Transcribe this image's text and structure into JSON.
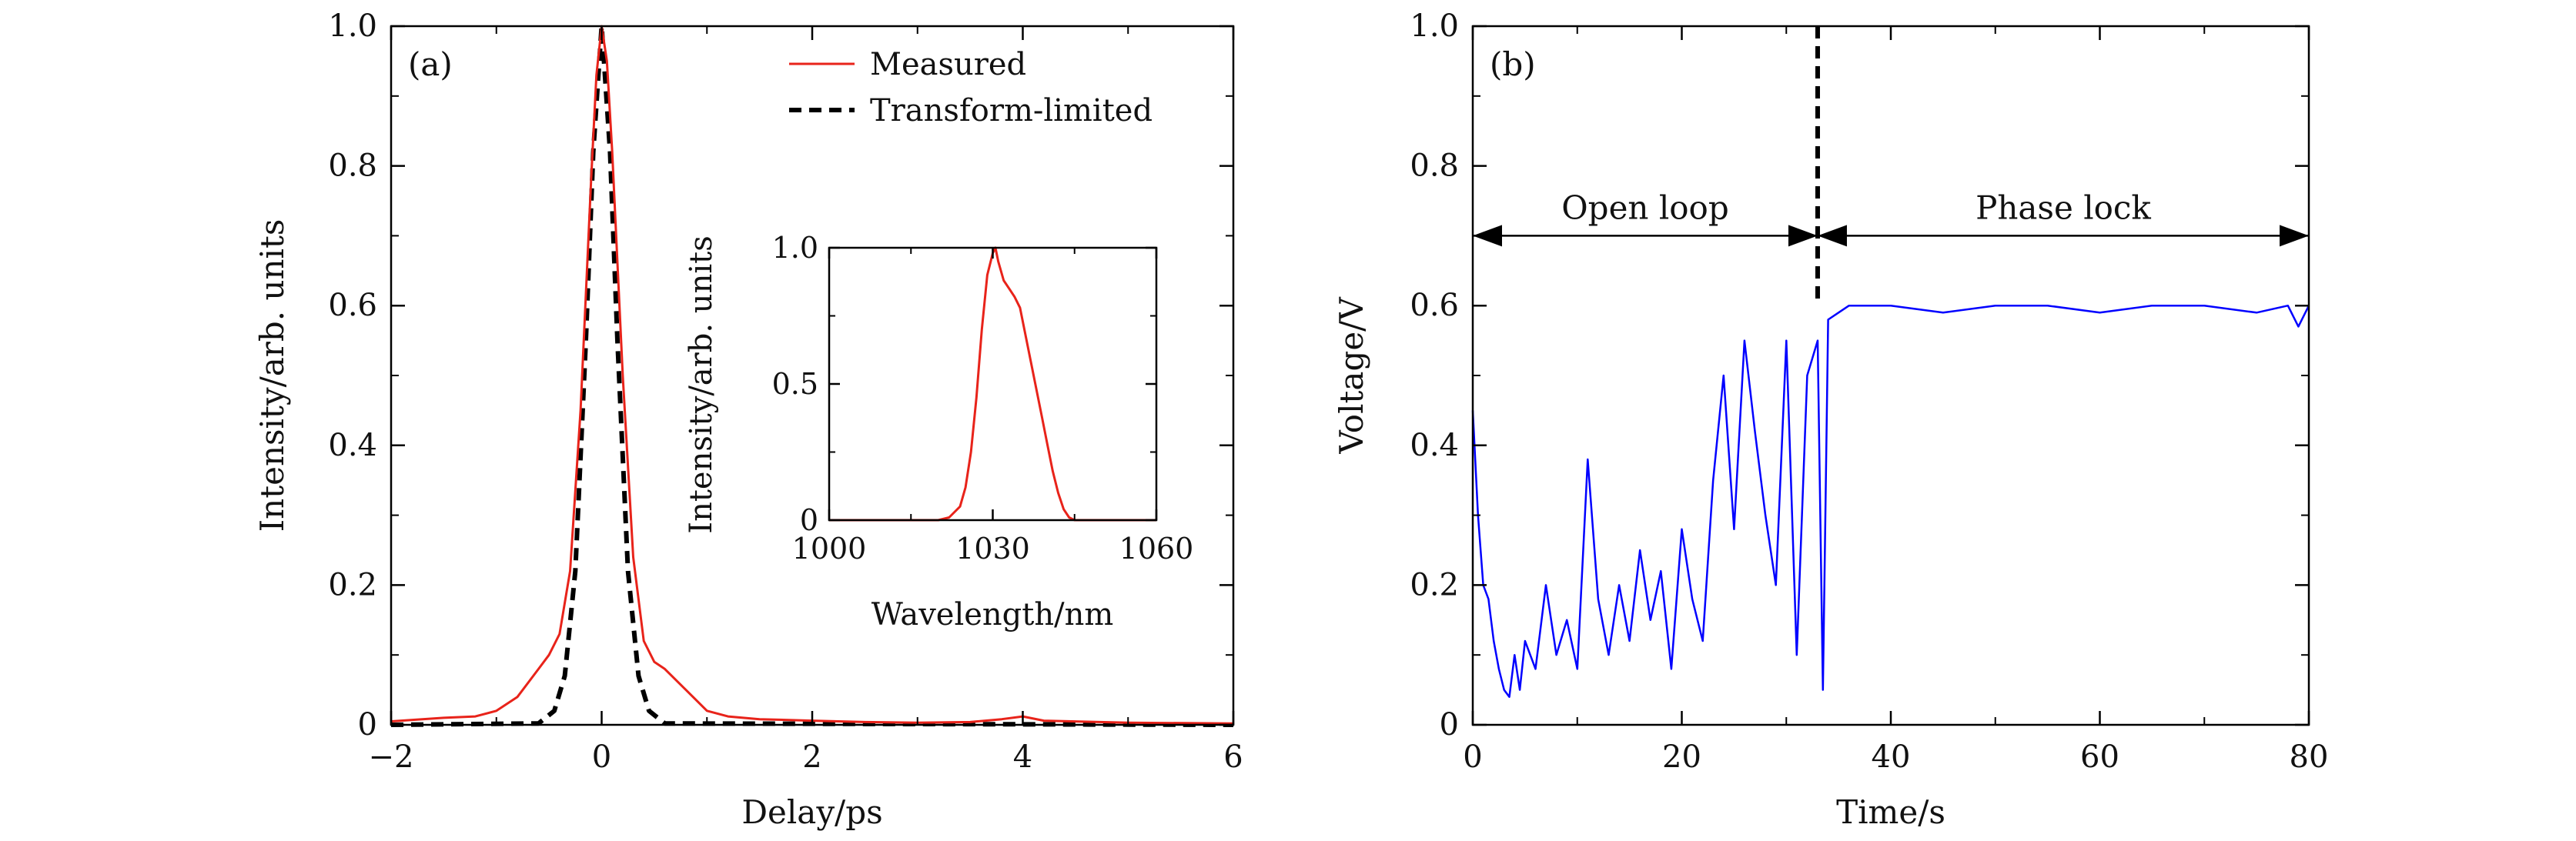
{
  "chart_data": [
    {
      "panel": "(a)",
      "type": "line",
      "xlabel": "Delay/ps",
      "ylabel": "Intensity/arb. units",
      "xlim": [
        -2,
        6
      ],
      "ylim": [
        0,
        1.0
      ],
      "xticks": [
        -2,
        0,
        2,
        4,
        6
      ],
      "xtick_labels": [
        "−2",
        "0",
        "2",
        "4",
        "6"
      ],
      "yticks": [
        0,
        0.2,
        0.4,
        0.6,
        0.8,
        1.0
      ],
      "ytick_labels": [
        "0",
        "0.2",
        "0.4",
        "0.6",
        "0.8",
        "1.0"
      ],
      "legend_position": "top-right",
      "series": [
        {
          "name": "Measured",
          "color": "#e8231a",
          "style": "solid",
          "x": [
            -2.0,
            -1.5,
            -1.2,
            -1.0,
            -0.8,
            -0.6,
            -0.5,
            -0.4,
            -0.3,
            -0.2,
            -0.1,
            -0.05,
            0.0,
            0.05,
            0.1,
            0.2,
            0.3,
            0.4,
            0.5,
            0.6,
            0.8,
            1.0,
            1.2,
            1.5,
            2.0,
            2.5,
            3.0,
            3.5,
            3.8,
            4.0,
            4.2,
            5.0,
            6.0
          ],
          "y": [
            0.005,
            0.01,
            0.012,
            0.02,
            0.04,
            0.08,
            0.1,
            0.13,
            0.22,
            0.45,
            0.78,
            0.93,
            1.0,
            0.95,
            0.82,
            0.5,
            0.24,
            0.12,
            0.09,
            0.08,
            0.05,
            0.02,
            0.012,
            0.008,
            0.006,
            0.004,
            0.003,
            0.004,
            0.008,
            0.012,
            0.006,
            0.003,
            0.002
          ]
        },
        {
          "name": "Transform-limited",
          "color": "#000000",
          "style": "dashed",
          "x": [
            -2.0,
            -0.6,
            -0.45,
            -0.35,
            -0.25,
            -0.15,
            -0.08,
            0.0,
            0.08,
            0.15,
            0.25,
            0.35,
            0.45,
            0.6,
            6.0
          ],
          "y": [
            0.0,
            0.002,
            0.02,
            0.07,
            0.22,
            0.55,
            0.82,
            1.0,
            0.82,
            0.55,
            0.22,
            0.07,
            0.02,
            0.002,
            0.0
          ]
        }
      ],
      "inset": {
        "xlabel": "Wavelength/nm",
        "ylabel": "Intensity/arb. units",
        "xlim": [
          1000,
          1060
        ],
        "ylim": [
          0,
          1.0
        ],
        "xticks": [
          1000,
          1030,
          1060
        ],
        "xtick_labels": [
          "1000",
          "1030",
          "1060"
        ],
        "yticks": [
          0,
          0.5,
          1.0
        ],
        "ytick_labels": [
          "0",
          "0.5",
          "1.0"
        ],
        "series": [
          {
            "color": "#e8231a",
            "x": [
              1000,
              1020,
              1022,
              1024,
              1025,
              1026,
              1027,
              1028,
              1029,
              1030,
              1030.5,
              1031,
              1032,
              1033,
              1034,
              1035,
              1036,
              1037,
              1038,
              1039,
              1040,
              1041,
              1042,
              1043,
              1044,
              1045,
              1060
            ],
            "y": [
              0.0,
              0.0,
              0.01,
              0.05,
              0.12,
              0.25,
              0.45,
              0.7,
              0.9,
              0.98,
              1.0,
              0.95,
              0.88,
              0.85,
              0.82,
              0.78,
              0.68,
              0.58,
              0.48,
              0.38,
              0.28,
              0.18,
              0.1,
              0.04,
              0.01,
              0.0,
              0.0
            ]
          }
        ]
      }
    },
    {
      "panel": "(b)",
      "type": "line",
      "xlabel": "Time/s",
      "ylabel": "Voltage/V",
      "xlim": [
        0,
        80
      ],
      "ylim": [
        0,
        1.0
      ],
      "xticks": [
        0,
        20,
        40,
        60,
        80
      ],
      "xtick_labels": [
        "0",
        "20",
        "40",
        "60",
        "80"
      ],
      "yticks": [
        0,
        0.2,
        0.4,
        0.6,
        0.8,
        1.0
      ],
      "ytick_labels": [
        "0",
        "0.2",
        "0.4",
        "0.6",
        "0.8",
        "1.0"
      ],
      "series": [
        {
          "color": "#0000ff",
          "x": [
            0,
            0.5,
            1,
            1.5,
            2,
            2.5,
            3,
            3.5,
            4,
            4.5,
            5,
            6,
            7,
            8,
            9,
            10,
            11,
            12,
            13,
            14,
            15,
            16,
            17,
            18,
            19,
            20,
            21,
            22,
            23,
            24,
            25,
            26,
            27,
            28,
            29,
            30,
            31,
            32,
            33,
            33.5,
            34,
            35,
            36,
            38,
            40,
            45,
            50,
            55,
            60,
            65,
            70,
            75,
            78,
            79,
            80
          ],
          "y": [
            0.45,
            0.3,
            0.2,
            0.18,
            0.12,
            0.08,
            0.05,
            0.04,
            0.1,
            0.05,
            0.12,
            0.08,
            0.2,
            0.1,
            0.15,
            0.08,
            0.38,
            0.18,
            0.1,
            0.2,
            0.12,
            0.25,
            0.15,
            0.22,
            0.08,
            0.28,
            0.18,
            0.12,
            0.35,
            0.5,
            0.28,
            0.55,
            0.42,
            0.3,
            0.2,
            0.55,
            0.1,
            0.5,
            0.55,
            0.05,
            0.58,
            0.59,
            0.6,
            0.6,
            0.6,
            0.59,
            0.6,
            0.6,
            0.59,
            0.6,
            0.6,
            0.59,
            0.6,
            0.57,
            0.6
          ]
        }
      ],
      "lock_time": 33,
      "annotations": [
        {
          "text": "Open loop",
          "x_range": [
            0,
            33
          ],
          "y": 0.7
        },
        {
          "text": "Phase lock",
          "x_range": [
            33,
            80
          ],
          "y": 0.7
        }
      ]
    }
  ]
}
